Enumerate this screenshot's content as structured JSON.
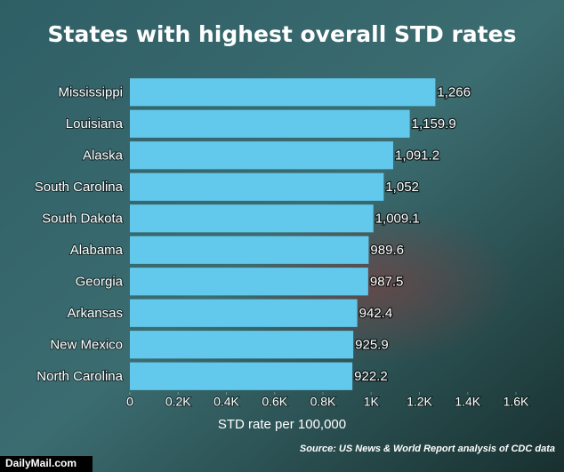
{
  "chart_data": {
    "type": "bar",
    "orientation": "horizontal",
    "title": "States with highest overall STD rates",
    "categories": [
      "Mississippi",
      "Louisiana",
      "Alaska",
      "South Carolina",
      "South Dakota",
      "Alabama",
      "Georgia",
      "Arkansas",
      "New Mexico",
      "North Carolina"
    ],
    "values": [
      1266,
      1159.9,
      1091.2,
      1052,
      1009.1,
      989.6,
      987.5,
      942.4,
      925.9,
      922.2
    ],
    "value_labels": [
      "1,266",
      "1,159.9",
      "1,091.2",
      "1,052",
      "1,009.1",
      "989.6",
      "987.5",
      "942.4",
      "925.9",
      "922.2"
    ],
    "color": "#62c8ec",
    "xlim": [
      0,
      1600
    ],
    "xticks": [
      0,
      {
        "value": 200,
        "label": "0.2K"
      },
      {
        "value": 400,
        "label": "0.4K"
      },
      {
        "value": 600,
        "label": "0.6K"
      },
      {
        "value": 800,
        "label": "0.8K"
      },
      {
        "value": 1000,
        "label": "1K"
      },
      {
        "value": 1200,
        "label": "1.2K"
      },
      {
        "value": 1400,
        "label": "1.4K"
      },
      {
        "value": 1600,
        "label": "1.6K"
      }
    ],
    "x_label": "STD rate per 100,000",
    "source": "Source: US News & World Report analysis of CDC data",
    "watermark": "DailyMail.com",
    "grid": false
  }
}
